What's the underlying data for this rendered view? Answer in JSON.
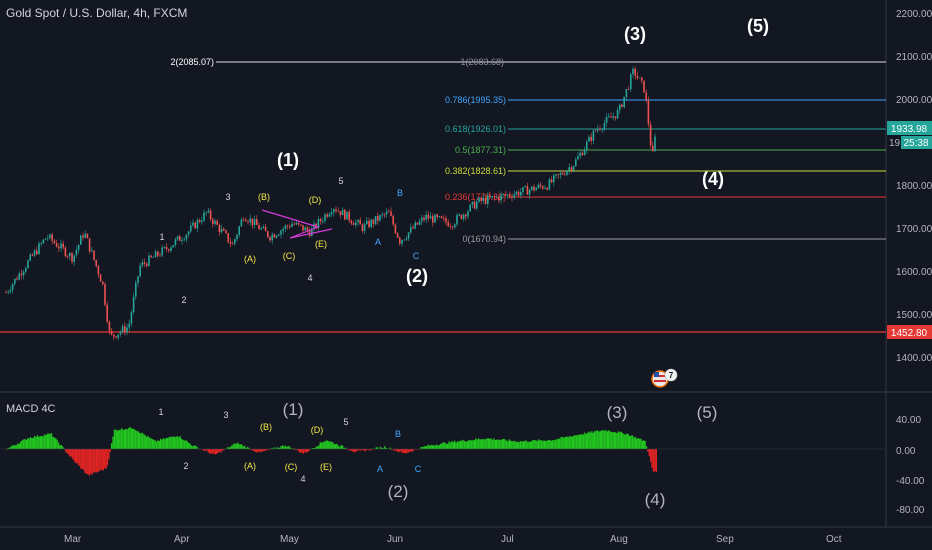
{
  "header": {
    "symbol_title": "Gold Spot / U.S. Dollar, 4h, FXCM"
  },
  "indicator": {
    "name": "MACD 4C"
  },
  "colors": {
    "background": "#131722",
    "bull": "#26a69a",
    "bear": "#ef5350",
    "macd_pos": "#22c41f",
    "macd_neg": "#e02424",
    "support_line": "#e53935"
  },
  "price_axis": {
    "ticks": [
      "2200.00",
      "2100.00",
      "2000.00",
      "1900.00",
      "1800.00",
      "1700.00",
      "1600.00",
      "1500.00",
      "1400.00"
    ]
  },
  "price_badges": {
    "current": "1933.98",
    "partial_label": "19",
    "countdown": "25:38",
    "support": "1452.80"
  },
  "time_axis": {
    "labels": [
      "Mar",
      "Apr",
      "May",
      "Jun",
      "Jul",
      "Aug",
      "Sep",
      "Oct"
    ]
  },
  "macd_axis": {
    "ticks": [
      "40.00",
      "0.00",
      "-40.00",
      "-80.00"
    ]
  },
  "fib_levels": [
    {
      "label": "2(2085.07)",
      "extension": "1(2083.68)",
      "color": "#ffffff"
    },
    {
      "label": "0.786(1995.35)",
      "color": "#3fa7ff"
    },
    {
      "label": "0.618(1926.01)",
      "color": "#26a69a"
    },
    {
      "label": "0.5(1877.31)",
      "color": "#4caf50"
    },
    {
      "label": "0.382(1828.61)",
      "color": "#cddc39"
    },
    {
      "label": "0.236(1770.35)",
      "color": "#e53935"
    },
    {
      "label": "0(1670.94)",
      "color": "#9e9e9e"
    }
  ],
  "main_waves": [
    {
      "text": "(1)",
      "color": "#ffffff"
    },
    {
      "text": "(2)",
      "color": "#ffffff"
    },
    {
      "text": "(3)",
      "color": "#ffffff"
    },
    {
      "text": "(4)",
      "color": "#ffffff"
    },
    {
      "text": "(5)",
      "color": "#ffffff"
    }
  ],
  "minor_waves": [
    {
      "text": "1",
      "color": "#d1d4dc"
    },
    {
      "text": "2",
      "color": "#d1d4dc"
    },
    {
      "text": "3",
      "color": "#d1d4dc"
    },
    {
      "text": "4",
      "color": "#d1d4dc"
    },
    {
      "text": "5",
      "color": "#d1d4dc"
    },
    {
      "text": "(A)",
      "color": "#f5e94a"
    },
    {
      "text": "(B)",
      "color": "#f5e94a"
    },
    {
      "text": "(C)",
      "color": "#f5e94a"
    },
    {
      "text": "(D)",
      "color": "#f5e94a"
    },
    {
      "text": "(E)",
      "color": "#f5e94a"
    },
    {
      "text": "A",
      "color": "#3fa7ff"
    },
    {
      "text": "B",
      "color": "#3fa7ff"
    },
    {
      "text": "C",
      "color": "#3fa7ff"
    }
  ],
  "macd_main_waves": [
    {
      "text": "(1)",
      "color": "#b2b5be"
    },
    {
      "text": "(2)",
      "color": "#b2b5be"
    },
    {
      "text": "(3)",
      "color": "#b2b5be"
    },
    {
      "text": "(4)",
      "color": "#b2b5be"
    },
    {
      "text": "(5)",
      "color": "#b2b5be"
    }
  ],
  "macd_minor_waves": [
    {
      "text": "1",
      "color": "#d1d4dc"
    },
    {
      "text": "2",
      "color": "#d1d4dc"
    },
    {
      "text": "3",
      "color": "#d1d4dc"
    },
    {
      "text": "4",
      "color": "#d1d4dc"
    },
    {
      "text": "5",
      "color": "#d1d4dc"
    },
    {
      "text": "(A)",
      "color": "#f5e94a"
    },
    {
      "text": "(B)",
      "color": "#f5e94a"
    },
    {
      "text": "(C)",
      "color": "#f5e94a"
    },
    {
      "text": "(D)",
      "color": "#f5e94a"
    },
    {
      "text": "(E)",
      "color": "#f5e94a"
    },
    {
      "text": "A",
      "color": "#3fa7ff"
    },
    {
      "text": "B",
      "color": "#3fa7ff"
    },
    {
      "text": "C",
      "color": "#3fa7ff"
    }
  ],
  "events_badge": {
    "icon": "us-flag-events-icon",
    "count": "7"
  },
  "chart_data": {
    "type": "candlestick",
    "y_range": [
      1300,
      2230
    ],
    "support_level": 1452.8,
    "current_price": 1933.98,
    "price_path": [
      {
        "x": "2020-02-20",
        "y": 1560
      },
      {
        "x": "2020-03-02",
        "y": 1690
      },
      {
        "x": "2020-03-09",
        "y": 1640
      },
      {
        "x": "2020-03-12",
        "y": 1700
      },
      {
        "x": "2020-03-17",
        "y": 1580
      },
      {
        "x": "2020-03-19",
        "y": 1455
      },
      {
        "x": "2020-03-24",
        "y": 1480
      },
      {
        "x": "2020-03-27",
        "y": 1620
      },
      {
        "x": "2020-04-03",
        "y": 1660
      },
      {
        "x": "2020-04-09",
        "y": 1700
      },
      {
        "x": "2020-04-14",
        "y": 1745
      },
      {
        "x": "2020-04-21",
        "y": 1670
      },
      {
        "x": "2020-04-24",
        "y": 1740
      },
      {
        "x": "2020-05-01",
        "y": 1690
      },
      {
        "x": "2020-05-07",
        "y": 1720
      },
      {
        "x": "2020-05-12",
        "y": 1700
      },
      {
        "x": "2020-05-18",
        "y": 1760
      },
      {
        "x": "2020-05-26",
        "y": 1710
      },
      {
        "x": "2020-06-02",
        "y": 1745
      },
      {
        "x": "2020-06-05",
        "y": 1680
      },
      {
        "x": "2020-06-12",
        "y": 1735
      },
      {
        "x": "2020-06-19",
        "y": 1720
      },
      {
        "x": "2020-06-26",
        "y": 1770
      },
      {
        "x": "2020-07-06",
        "y": 1790
      },
      {
        "x": "2020-07-15",
        "y": 1810
      },
      {
        "x": "2020-07-22",
        "y": 1860
      },
      {
        "x": "2020-07-28",
        "y": 1940
      },
      {
        "x": "2020-08-03",
        "y": 1980
      },
      {
        "x": "2020-08-07",
        "y": 2075
      },
      {
        "x": "2020-08-10",
        "y": 2030
      },
      {
        "x": "2020-08-12",
        "y": 1870
      },
      {
        "x": "2020-08-13",
        "y": 1934
      }
    ],
    "macd_range": [
      -100,
      60
    ],
    "macd_hist": [
      {
        "x": "2020-02-20",
        "y": 0
      },
      {
        "x": "2020-02-26",
        "y": 15
      },
      {
        "x": "2020-03-03",
        "y": 20
      },
      {
        "x": "2020-03-09",
        "y": -15
      },
      {
        "x": "2020-03-13",
        "y": -35
      },
      {
        "x": "2020-03-18",
        "y": -25
      },
      {
        "x": "2020-03-20",
        "y": 25
      },
      {
        "x": "2020-03-25",
        "y": 28
      },
      {
        "x": "2020-03-31",
        "y": 10
      },
      {
        "x": "2020-04-06",
        "y": 18
      },
      {
        "x": "2020-04-10",
        "y": 5
      },
      {
        "x": "2020-04-16",
        "y": -8
      },
      {
        "x": "2020-04-22",
        "y": 8
      },
      {
        "x": "2020-04-28",
        "y": -5
      },
      {
        "x": "2020-05-05",
        "y": 5
      },
      {
        "x": "2020-05-10",
        "y": -6
      },
      {
        "x": "2020-05-16",
        "y": 12
      },
      {
        "x": "2020-05-24",
        "y": -4
      },
      {
        "x": "2020-06-01",
        "y": 3
      },
      {
        "x": "2020-06-06",
        "y": -6
      },
      {
        "x": "2020-06-12",
        "y": 4
      },
      {
        "x": "2020-06-20",
        "y": 10
      },
      {
        "x": "2020-06-28",
        "y": 14
      },
      {
        "x": "2020-07-07",
        "y": 10
      },
      {
        "x": "2020-07-16",
        "y": 12
      },
      {
        "x": "2020-07-24",
        "y": 20
      },
      {
        "x": "2020-07-30",
        "y": 25
      },
      {
        "x": "2020-08-05",
        "y": 20
      },
      {
        "x": "2020-08-10",
        "y": 10
      },
      {
        "x": "2020-08-12",
        "y": -30
      }
    ]
  }
}
